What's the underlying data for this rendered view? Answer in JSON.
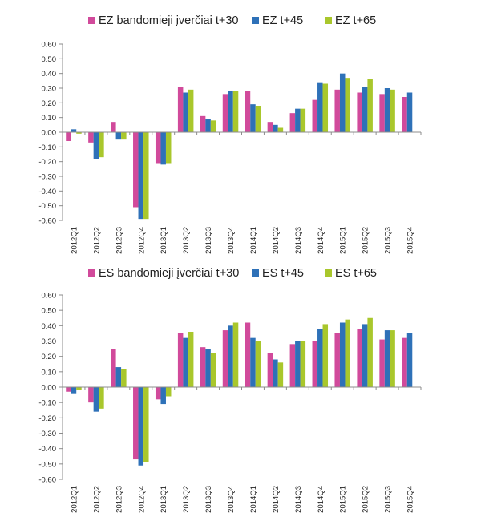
{
  "colors": {
    "series1": "#d14a9b",
    "series2": "#2e71b8",
    "series3": "#a9c72c",
    "axis": "#8c8c8c"
  },
  "chart_data": [
    {
      "type": "bar",
      "title": "",
      "xlabel": "",
      "ylabel": "",
      "ylim": [
        -0.6,
        0.6
      ],
      "yticks": [
        "0.60",
        "0.50",
        "0.40",
        "0.30",
        "0.20",
        "0.10",
        "0.00",
        "-0.10",
        "-0.20",
        "-0.30",
        "-0.40",
        "-0.50",
        "-0.60"
      ],
      "grid": false,
      "legend_position": "top",
      "categories": [
        "2012Q1",
        "2012Q2",
        "2012Q3",
        "2012Q4",
        "2013Q1",
        "2013Q2",
        "2013Q3",
        "2013Q4",
        "2014Q1",
        "2014Q2",
        "2014Q3",
        "2014Q4",
        "2015Q1",
        "2015Q2",
        "2015Q3",
        "2015Q4"
      ],
      "series": [
        {
          "name": "EZ bandomieji įverčiai t+30",
          "values": [
            -0.06,
            -0.07,
            0.07,
            -0.51,
            -0.21,
            0.31,
            0.11,
            0.26,
            0.28,
            0.07,
            0.13,
            0.22,
            0.29,
            0.27,
            0.26,
            0.24
          ]
        },
        {
          "name": "EZ t+45",
          "values": [
            0.02,
            -0.18,
            -0.05,
            -0.59,
            -0.22,
            0.27,
            0.09,
            0.28,
            0.19,
            0.05,
            0.16,
            0.34,
            0.4,
            0.31,
            0.3,
            0.27
          ]
        },
        {
          "name": "EZ t+65",
          "values": [
            -0.01,
            -0.17,
            -0.05,
            -0.59,
            -0.21,
            0.29,
            0.08,
            0.28,
            0.18,
            0.03,
            0.16,
            0.33,
            0.37,
            0.36,
            0.29,
            null
          ]
        }
      ]
    },
    {
      "type": "bar",
      "title": "",
      "xlabel": "",
      "ylabel": "",
      "ylim": [
        -0.6,
        0.6
      ],
      "yticks": [
        "0.60",
        "0.50",
        "0.40",
        "0.30",
        "0.20",
        "0.10",
        "0.00",
        "-0.10",
        "-0.20",
        "-0.30",
        "-0.40",
        "-0.50",
        "-0.60"
      ],
      "grid": false,
      "legend_position": "top",
      "categories": [
        "2012Q1",
        "2012Q2",
        "2012Q3",
        "2012Q4",
        "2013Q1",
        "2013Q2",
        "2013Q3",
        "2013Q4",
        "2014Q1",
        "2014Q2",
        "2014Q3",
        "2014Q4",
        "2015Q1",
        "2015Q2",
        "2015Q3",
        "2015Q4"
      ],
      "series": [
        {
          "name": "ES bandomieji įverčiai t+30",
          "values": [
            -0.03,
            -0.1,
            0.25,
            -0.47,
            -0.08,
            0.35,
            0.26,
            0.37,
            0.42,
            0.22,
            0.28,
            0.3,
            0.35,
            0.38,
            0.31,
            0.32
          ]
        },
        {
          "name": "ES t+45",
          "values": [
            -0.04,
            -0.16,
            0.13,
            -0.51,
            -0.11,
            0.32,
            0.25,
            0.4,
            0.32,
            0.18,
            0.3,
            0.38,
            0.42,
            0.41,
            0.37,
            0.35
          ]
        },
        {
          "name": "ES t+65",
          "values": [
            -0.02,
            -0.14,
            0.12,
            -0.49,
            -0.06,
            0.36,
            0.22,
            0.42,
            0.3,
            0.16,
            0.3,
            0.41,
            0.44,
            0.45,
            0.37,
            null
          ]
        }
      ]
    }
  ]
}
